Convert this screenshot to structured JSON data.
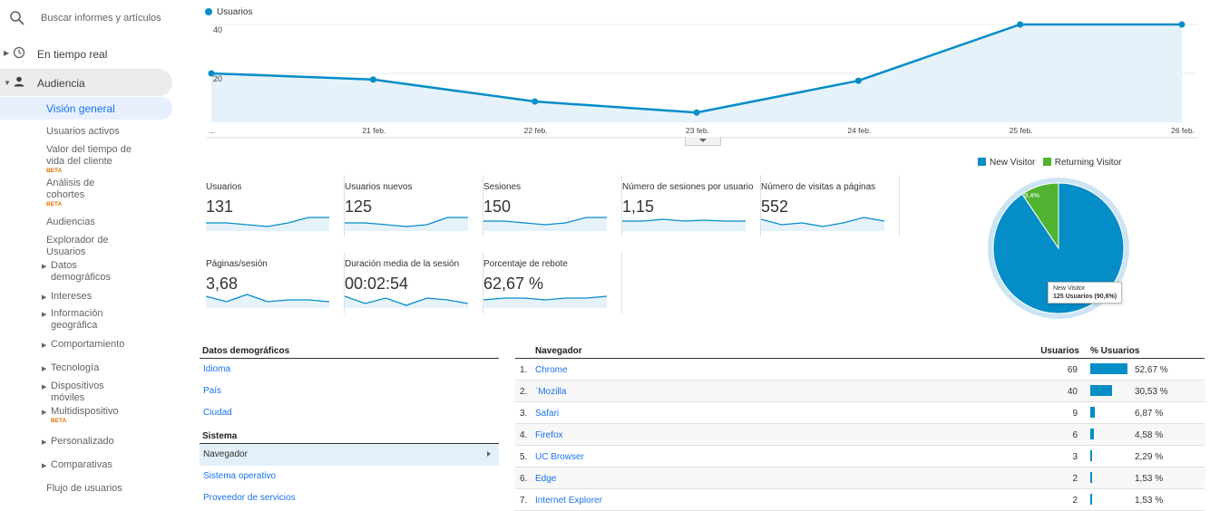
{
  "sidebar": {
    "search_placeholder": "Buscar informes y artículos",
    "realtime": "En tiempo real",
    "audience": "Audiencia",
    "overview": "Visión general",
    "active_users": "Usuarios activos",
    "lifetime_value": "Valor del tiempo de vida del cliente",
    "cohort": "Análisis de cohortes",
    "beta": "BETA",
    "audiences": "Audiencias",
    "user_explorer": "Explorador de Usuarios",
    "demographics": "Datos demográficos",
    "interests": "Intereses",
    "geo": "Información geográfica",
    "behavior": "Comportamiento",
    "technology": "Tecnología",
    "mobile": "Dispositivos móviles",
    "cross_device": "Multidispositivo",
    "custom": "Personalizado",
    "benchmarking": "Comparativas",
    "users_flow": "Flujo de usuarios"
  },
  "line_chart": {
    "legend": "Usuarios",
    "color": "#058dc7",
    "y_ticks": [
      "40",
      "20"
    ],
    "ylim": [
      0,
      50
    ],
    "x_labels": [
      "...",
      "21 feb.",
      "22 feb.",
      "23 feb.",
      "24 feb.",
      "25 feb.",
      "26 feb."
    ],
    "values": [
      20,
      17.5,
      8.5,
      4,
      17,
      40,
      40
    ]
  },
  "metrics": [
    {
      "label": "Usuarios",
      "value": "131",
      "spark": [
        4,
        4,
        3,
        2,
        4,
        7,
        7
      ]
    },
    {
      "label": "Usuarios nuevos",
      "value": "125",
      "spark": [
        4,
        4,
        3,
        2,
        3,
        7,
        7
      ]
    },
    {
      "label": "Sesiones",
      "value": "150",
      "spark": [
        5,
        5,
        4,
        3,
        4,
        7,
        7
      ]
    },
    {
      "label": "Número de sesiones por usuario",
      "value": "1,15",
      "spark": [
        5,
        5,
        6,
        5,
        5.5,
        5,
        5
      ]
    },
    {
      "label": "Número de visitas a páginas",
      "value": "552",
      "spark": [
        6,
        3,
        4,
        2,
        4,
        7,
        5
      ]
    },
    {
      "label": "Páginas/sesión",
      "value": "3,68",
      "spark": [
        6,
        3,
        7,
        3,
        4,
        4,
        3
      ]
    },
    {
      "label": "Duración media de la sesión",
      "value": "00:02:54",
      "spark": [
        6,
        2,
        5,
        1,
        5,
        4,
        2
      ]
    },
    {
      "label": "Porcentaje de rebote",
      "value": "62,67 %",
      "spark": [
        4,
        5,
        5,
        4,
        5,
        5,
        6
      ]
    }
  ],
  "pie": {
    "legend": [
      {
        "name": "New Visitor",
        "color": "#058dc7"
      },
      {
        "name": "Returning Visitor",
        "color": "#50b432"
      }
    ],
    "slices": [
      90.6,
      9.4
    ],
    "returning_label": "9,4%",
    "tooltip_title": "New Visitor",
    "tooltip_value": "125 Usuarios (90,6%)"
  },
  "bottom_left": {
    "demographics_title": "Datos demográficos",
    "language": "Idioma",
    "country": "País",
    "city": "Ciudad",
    "system_title": "Sistema",
    "browser": "Navegador",
    "os": "Sistema operativo",
    "isp": "Proveedor de servicios"
  },
  "table": {
    "col_browser": "Navegador",
    "col_users": "Usuarios",
    "col_pct": "% Usuarios",
    "rows": [
      {
        "num": "1.",
        "name": "Chrome",
        "users": "69",
        "pct": "52,67 %",
        "frac": 0.5267
      },
      {
        "num": "2.",
        "name": "`Mozilla",
        "users": "40",
        "pct": "30,53 %",
        "frac": 0.3053
      },
      {
        "num": "3.",
        "name": "Safari",
        "users": "9",
        "pct": "6,87 %",
        "frac": 0.0687
      },
      {
        "num": "4.",
        "name": "Firefox",
        "users": "6",
        "pct": "4,58 %",
        "frac": 0.0458
      },
      {
        "num": "5.",
        "name": "UC Browser",
        "users": "3",
        "pct": "2,29 %",
        "frac": 0.0229
      },
      {
        "num": "6.",
        "name": "Edge",
        "users": "2",
        "pct": "1,53 %",
        "frac": 0.0153
      },
      {
        "num": "7.",
        "name": "Internet Explorer",
        "users": "2",
        "pct": "1,53 %",
        "frac": 0.0153
      }
    ]
  }
}
